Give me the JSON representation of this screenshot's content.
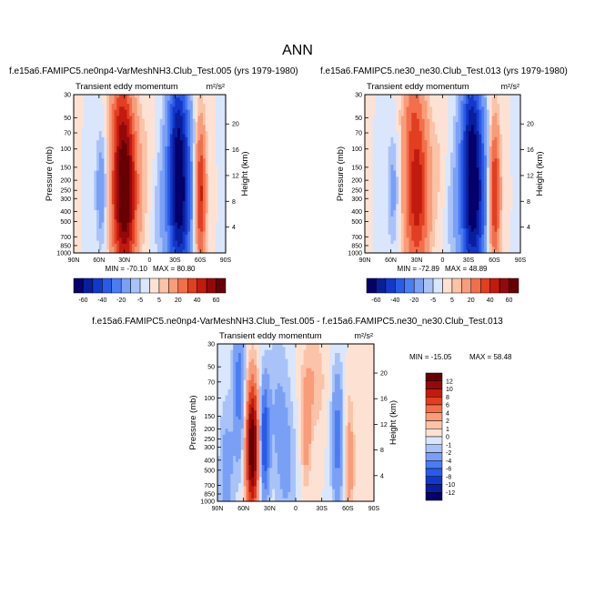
{
  "figure": {
    "title": "ANN",
    "left_subtitle": "f.e15a6.FAMIPC5.ne0np4-VarMeshNH3.Club_Test.005 (yrs 1979-1980)",
    "right_subtitle": "f.e15a6.FAMIPC5.ne30_ne30.Club_Test.013 (yrs 1979-1980)",
    "diff_subtitle": "f.e15a6.FAMIPC5.ne0np4-VarMeshNH3.Club_Test.005 - f.e15a6.FAMIPC5.ne30_ne30.Club_Test.013"
  },
  "chart_data": [
    {
      "type": "heatmap",
      "title": "Transient eddy momentum",
      "units": "m²/s²",
      "ylabel": "Pressure (mb)",
      "y2label": "Height (km)",
      "x_ticks": [
        "90N",
        "60N",
        "30N",
        "0",
        "30S",
        "60S",
        "90S"
      ],
      "p_ticks": [
        30,
        50,
        70,
        100,
        150,
        200,
        250,
        300,
        400,
        500,
        700,
        850,
        1000
      ],
      "z_ticks": [
        4,
        8,
        12,
        16,
        20
      ],
      "min_label": "MIN = -70.10",
      "max_label": "MAX = 80.80",
      "colorbar_labels": [
        "-60",
        "-40",
        "-20",
        "-5",
        "5",
        "20",
        "40",
        "60"
      ],
      "features": [
        {
          "lat": 30,
          "p": 250,
          "amp": 78,
          "wlat": 10,
          "wp": 1.3
        },
        {
          "lat": 57,
          "p": 250,
          "amp": -18,
          "wlat": 5,
          "wp": 0.9
        },
        {
          "lat": 36,
          "p": 40,
          "amp": 15,
          "wlat": 8,
          "wp": 0.6
        },
        {
          "lat": 2,
          "p": 160,
          "amp": 5,
          "wlat": 6,
          "wp": 1.2
        },
        {
          "lat": -35,
          "p": 270,
          "amp": -70,
          "wlat": 10,
          "wp": 1.4
        },
        {
          "lat": -33,
          "p": 45,
          "amp": -22,
          "wlat": 8,
          "wp": 0.7
        },
        {
          "lat": -60,
          "p": 270,
          "amp": 45,
          "wlat": 4.5,
          "wp": 1.1
        },
        {
          "lat": -10,
          "p": 400,
          "amp": -6,
          "wlat": 8,
          "wp": 1.0
        }
      ]
    },
    {
      "type": "heatmap",
      "title": "Transient eddy momentum",
      "units": "m²/s²",
      "ylabel": "Pressure (mb)",
      "y2label": "Height (km)",
      "x_ticks": [
        "90N",
        "60N",
        "30N",
        "0",
        "30S",
        "60S",
        "90S"
      ],
      "p_ticks": [
        30,
        50,
        70,
        100,
        150,
        200,
        250,
        300,
        400,
        500,
        700,
        850,
        1000
      ],
      "z_ticks": [
        4,
        8,
        12,
        16,
        20
      ],
      "min_label": "MIN = -72.89",
      "max_label": "MAX = 48.89",
      "colorbar_labels": [
        "-60",
        "-40",
        "-20",
        "-5",
        "5",
        "20",
        "40",
        "60"
      ],
      "features": [
        {
          "lat": 30,
          "p": 250,
          "amp": 48,
          "wlat": 10,
          "wp": 1.3
        },
        {
          "lat": 57,
          "p": 250,
          "amp": -14,
          "wlat": 5,
          "wp": 0.9
        },
        {
          "lat": 36,
          "p": 40,
          "amp": 12,
          "wlat": 8,
          "wp": 0.6
        },
        {
          "lat": 2,
          "p": 160,
          "amp": 5,
          "wlat": 6,
          "wp": 1.2
        },
        {
          "lat": -35,
          "p": 270,
          "amp": -72,
          "wlat": 10,
          "wp": 1.4
        },
        {
          "lat": -33,
          "p": 45,
          "amp": -22,
          "wlat": 8,
          "wp": 0.7
        },
        {
          "lat": -60,
          "p": 270,
          "amp": 44,
          "wlat": 4.5,
          "wp": 1.1
        },
        {
          "lat": -10,
          "p": 400,
          "amp": -6,
          "wlat": 8,
          "wp": 1.0
        }
      ]
    },
    {
      "type": "heatmap",
      "title": "Transient eddy momentum",
      "units": "m²/s²",
      "ylabel": "Pressure (mb)",
      "y2label": "Height (km)",
      "x_ticks": [
        "90N",
        "60N",
        "30N",
        "0",
        "30S",
        "60S",
        "90S"
      ],
      "p_ticks": [
        30,
        50,
        70,
        100,
        150,
        200,
        250,
        300,
        400,
        500,
        700,
        850,
        1000
      ],
      "z_ticks": [
        4,
        8,
        12,
        16,
        20
      ],
      "min_label": "MIN = -15.05",
      "max_label": "MAX = 58.48",
      "colorbar_labels": [
        "12",
        "10",
        "8",
        "6",
        "4",
        "2",
        "1",
        "0",
        "-1",
        "-2",
        "-4",
        "-6",
        "-8",
        "-10",
        "-12"
      ],
      "features": [
        {
          "lat": 50,
          "p": 300,
          "amp": 15,
          "wlat": 5,
          "wp": 1.0
        },
        {
          "lat": 36,
          "p": 260,
          "amp": -8,
          "wlat": 4,
          "wp": 0.9
        },
        {
          "lat": 65,
          "p": 80,
          "amp": -5,
          "wlat": 5,
          "wp": 1.2
        },
        {
          "lat": 20,
          "p": 120,
          "amp": -2,
          "wlat": 10,
          "wp": 1.3
        },
        {
          "lat": -12,
          "p": 230,
          "amp": 3,
          "wlat": 4,
          "wp": 0.8
        },
        {
          "lat": -48,
          "p": 250,
          "amp": -5,
          "wlat": 5,
          "wp": 1.1
        },
        {
          "lat": -62,
          "p": 400,
          "amp": 3,
          "wlat": 4,
          "wp": 1.0
        },
        {
          "lat": -20,
          "p": 70,
          "amp": 2,
          "wlat": 10,
          "wp": 0.8
        },
        {
          "lat": 80,
          "p": 600,
          "amp": -3,
          "wlat": 6,
          "wp": 1.2
        },
        {
          "lat": 10,
          "p": 500,
          "amp": -2,
          "wlat": 8,
          "wp": 1.0
        }
      ]
    }
  ]
}
